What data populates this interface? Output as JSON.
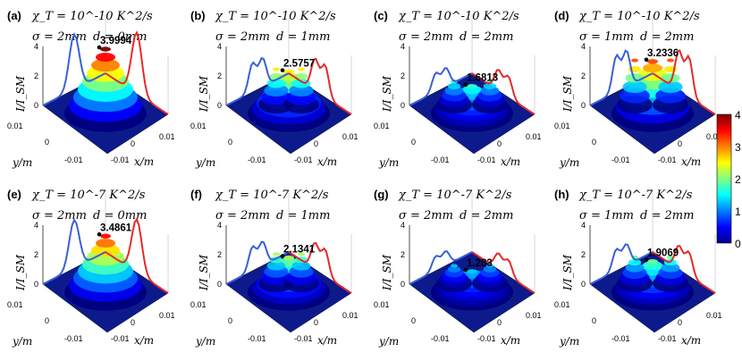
{
  "figure": {
    "ylabel": "I/I_SM",
    "xlabel": "x/m",
    "ylabel_y": "y/m"
  },
  "colorbar": {
    "ticks": [
      "0",
      "1",
      "2",
      "3",
      "4"
    ],
    "min": 0,
    "max": 4
  },
  "chart_data": [
    {
      "id": "a",
      "panel_label": "(a)",
      "chi": "10^-10 K^2/s",
      "chi_text": "χ_T = 10^-10 K^2/s",
      "sigma": "σ = 2mm",
      "d": "d = 0mm",
      "peak": "3.9994",
      "peak_value": 3.9994,
      "zlim": [
        0,
        4
      ],
      "zticks": [
        "0",
        "2",
        "4"
      ],
      "xticks": [
        "-0.01",
        "0",
        "0.01"
      ],
      "yticks": [
        "0.01",
        "0",
        "-0.01"
      ],
      "type": "surface3d"
    },
    {
      "id": "b",
      "panel_label": "(b)",
      "chi": "10^-10 K^2/s",
      "chi_text": "χ_T = 10^-10 K^2/s",
      "sigma": "σ = 2mm",
      "d": "d = 1mm",
      "peak": "2.5757",
      "peak_value": 2.5757,
      "zlim": [
        0,
        4
      ],
      "zticks": [
        "0",
        "2",
        "4"
      ],
      "xticks": [
        "-0.01",
        "0",
        "0.01"
      ],
      "yticks": [
        "0.01",
        "0",
        "-0.01"
      ],
      "type": "surface3d"
    },
    {
      "id": "c",
      "panel_label": "(c)",
      "chi": "10^-10 K^2/s",
      "chi_text": "χ_T = 10^-10 K^2/s",
      "sigma": "σ = 2mm",
      "d": "d = 2mm",
      "peak": "1.6813",
      "peak_value": 1.6813,
      "zlim": [
        0,
        4
      ],
      "zticks": [
        "0",
        "2",
        "4"
      ],
      "xticks": [
        "-0.01",
        "0",
        "0.01"
      ],
      "yticks": [
        "0.01",
        "0",
        "-0.01"
      ],
      "type": "surface3d"
    },
    {
      "id": "d",
      "panel_label": "(d)",
      "chi": "10^-10 K^2/s",
      "chi_text": "χ_T = 10^-10 K^2/s",
      "sigma": "σ = 1mm",
      "d": "d = 2mm",
      "peak": "3.2336",
      "peak_value": 3.2336,
      "zlim": [
        0,
        4
      ],
      "zticks": [
        "0",
        "2",
        "4"
      ],
      "xticks": [
        "-0.01",
        "0",
        "0.01"
      ],
      "yticks": [
        "0.01",
        "0",
        "-0.01"
      ],
      "type": "surface3d"
    },
    {
      "id": "e",
      "panel_label": "(e)",
      "chi": "10^-7 K^2/s",
      "chi_text": "χ_T = 10^-7 K^2/s",
      "sigma": "σ = 2mm",
      "d": "d = 0mm",
      "peak": "3.4861",
      "peak_value": 3.4861,
      "zlim": [
        0,
        4
      ],
      "zticks": [
        "0",
        "2",
        "4"
      ],
      "xticks": [
        "-0.01",
        "0",
        "0.01"
      ],
      "yticks": [
        "0.01",
        "0",
        "-0.01"
      ],
      "type": "surface3d"
    },
    {
      "id": "f",
      "panel_label": "(f)",
      "chi": "10^-7 K^2/s",
      "chi_text": "χ_T = 10^-7 K^2/s",
      "sigma": "σ = 2mm",
      "d": "d = 1mm",
      "peak": "2.1341",
      "peak_value": 2.1341,
      "zlim": [
        0,
        4
      ],
      "zticks": [
        "0",
        "2",
        "4"
      ],
      "xticks": [
        "-0.01",
        "0",
        "0.01"
      ],
      "yticks": [
        "0.01",
        "0",
        "-0.01"
      ],
      "type": "surface3d"
    },
    {
      "id": "g",
      "panel_label": "(g)",
      "chi": "10^-7 K^2/s",
      "chi_text": "χ_T = 10^-7 K^2/s",
      "sigma": "σ = 2mm",
      "d": "d = 2mm",
      "peak": "1.283",
      "peak_value": 1.283,
      "zlim": [
        0,
        4
      ],
      "zticks": [
        "0",
        "2",
        "4"
      ],
      "xticks": [
        "-0.01",
        "0",
        "0.01"
      ],
      "yticks": [
        "0.01",
        "0",
        "-0.01"
      ],
      "type": "surface3d"
    },
    {
      "id": "h",
      "panel_label": "(h)",
      "chi": "10^-7 K^2/s",
      "chi_text": "χ_T = 10^-7 K^2/s",
      "sigma": "σ = 1mm",
      "d": "d = 2mm",
      "peak": "1.9069",
      "peak_value": 1.9069,
      "zlim": [
        0,
        4
      ],
      "zticks": [
        "0",
        "2",
        "4"
      ],
      "xticks": [
        "-0.01",
        "0",
        "0.01"
      ],
      "yticks": [
        "0.01",
        "0",
        "-0.01"
      ],
      "type": "surface3d"
    }
  ]
}
